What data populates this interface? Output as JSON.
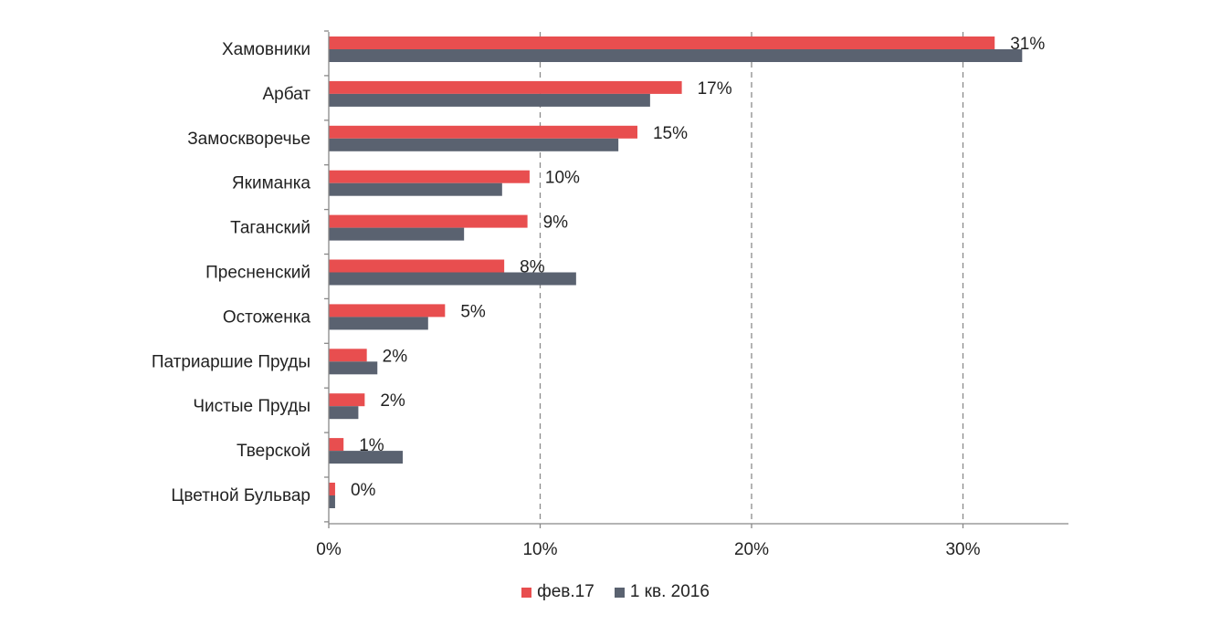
{
  "chart_data": {
    "type": "bar",
    "orientation": "horizontal",
    "categories": [
      "Хамовники",
      "Арбат",
      "Замоскворечье",
      "Якиманка",
      "Таганский",
      "Пресненский",
      "Остоженка",
      "Патриаршие Пруды",
      "Чистые Пруды",
      "Тверской",
      "Цветной Бульвар"
    ],
    "series": [
      {
        "name": "фев.17",
        "color": "#e84e4f",
        "values": [
          31.5,
          16.7,
          14.6,
          9.5,
          9.4,
          8.3,
          5.5,
          1.8,
          1.7,
          0.7,
          0.3
        ],
        "labels": [
          "31%",
          "17%",
          "15%",
          "10%",
          "9%",
          "8%",
          "5%",
          "2%",
          "2%",
          "1%",
          "0%"
        ]
      },
      {
        "name": "1 кв. 2016",
        "color": "#5a6270",
        "values": [
          32.8,
          15.2,
          13.7,
          8.2,
          6.4,
          11.7,
          4.7,
          2.3,
          1.4,
          3.5,
          0.3
        ]
      }
    ],
    "xticks": [
      "0%",
      "10%",
      "20%",
      "30%"
    ],
    "xtick_values": [
      0,
      10,
      20,
      30
    ],
    "xlim": [
      0,
      35
    ],
    "grid": "vertical dashed",
    "legend_position": "bottom-center"
  }
}
